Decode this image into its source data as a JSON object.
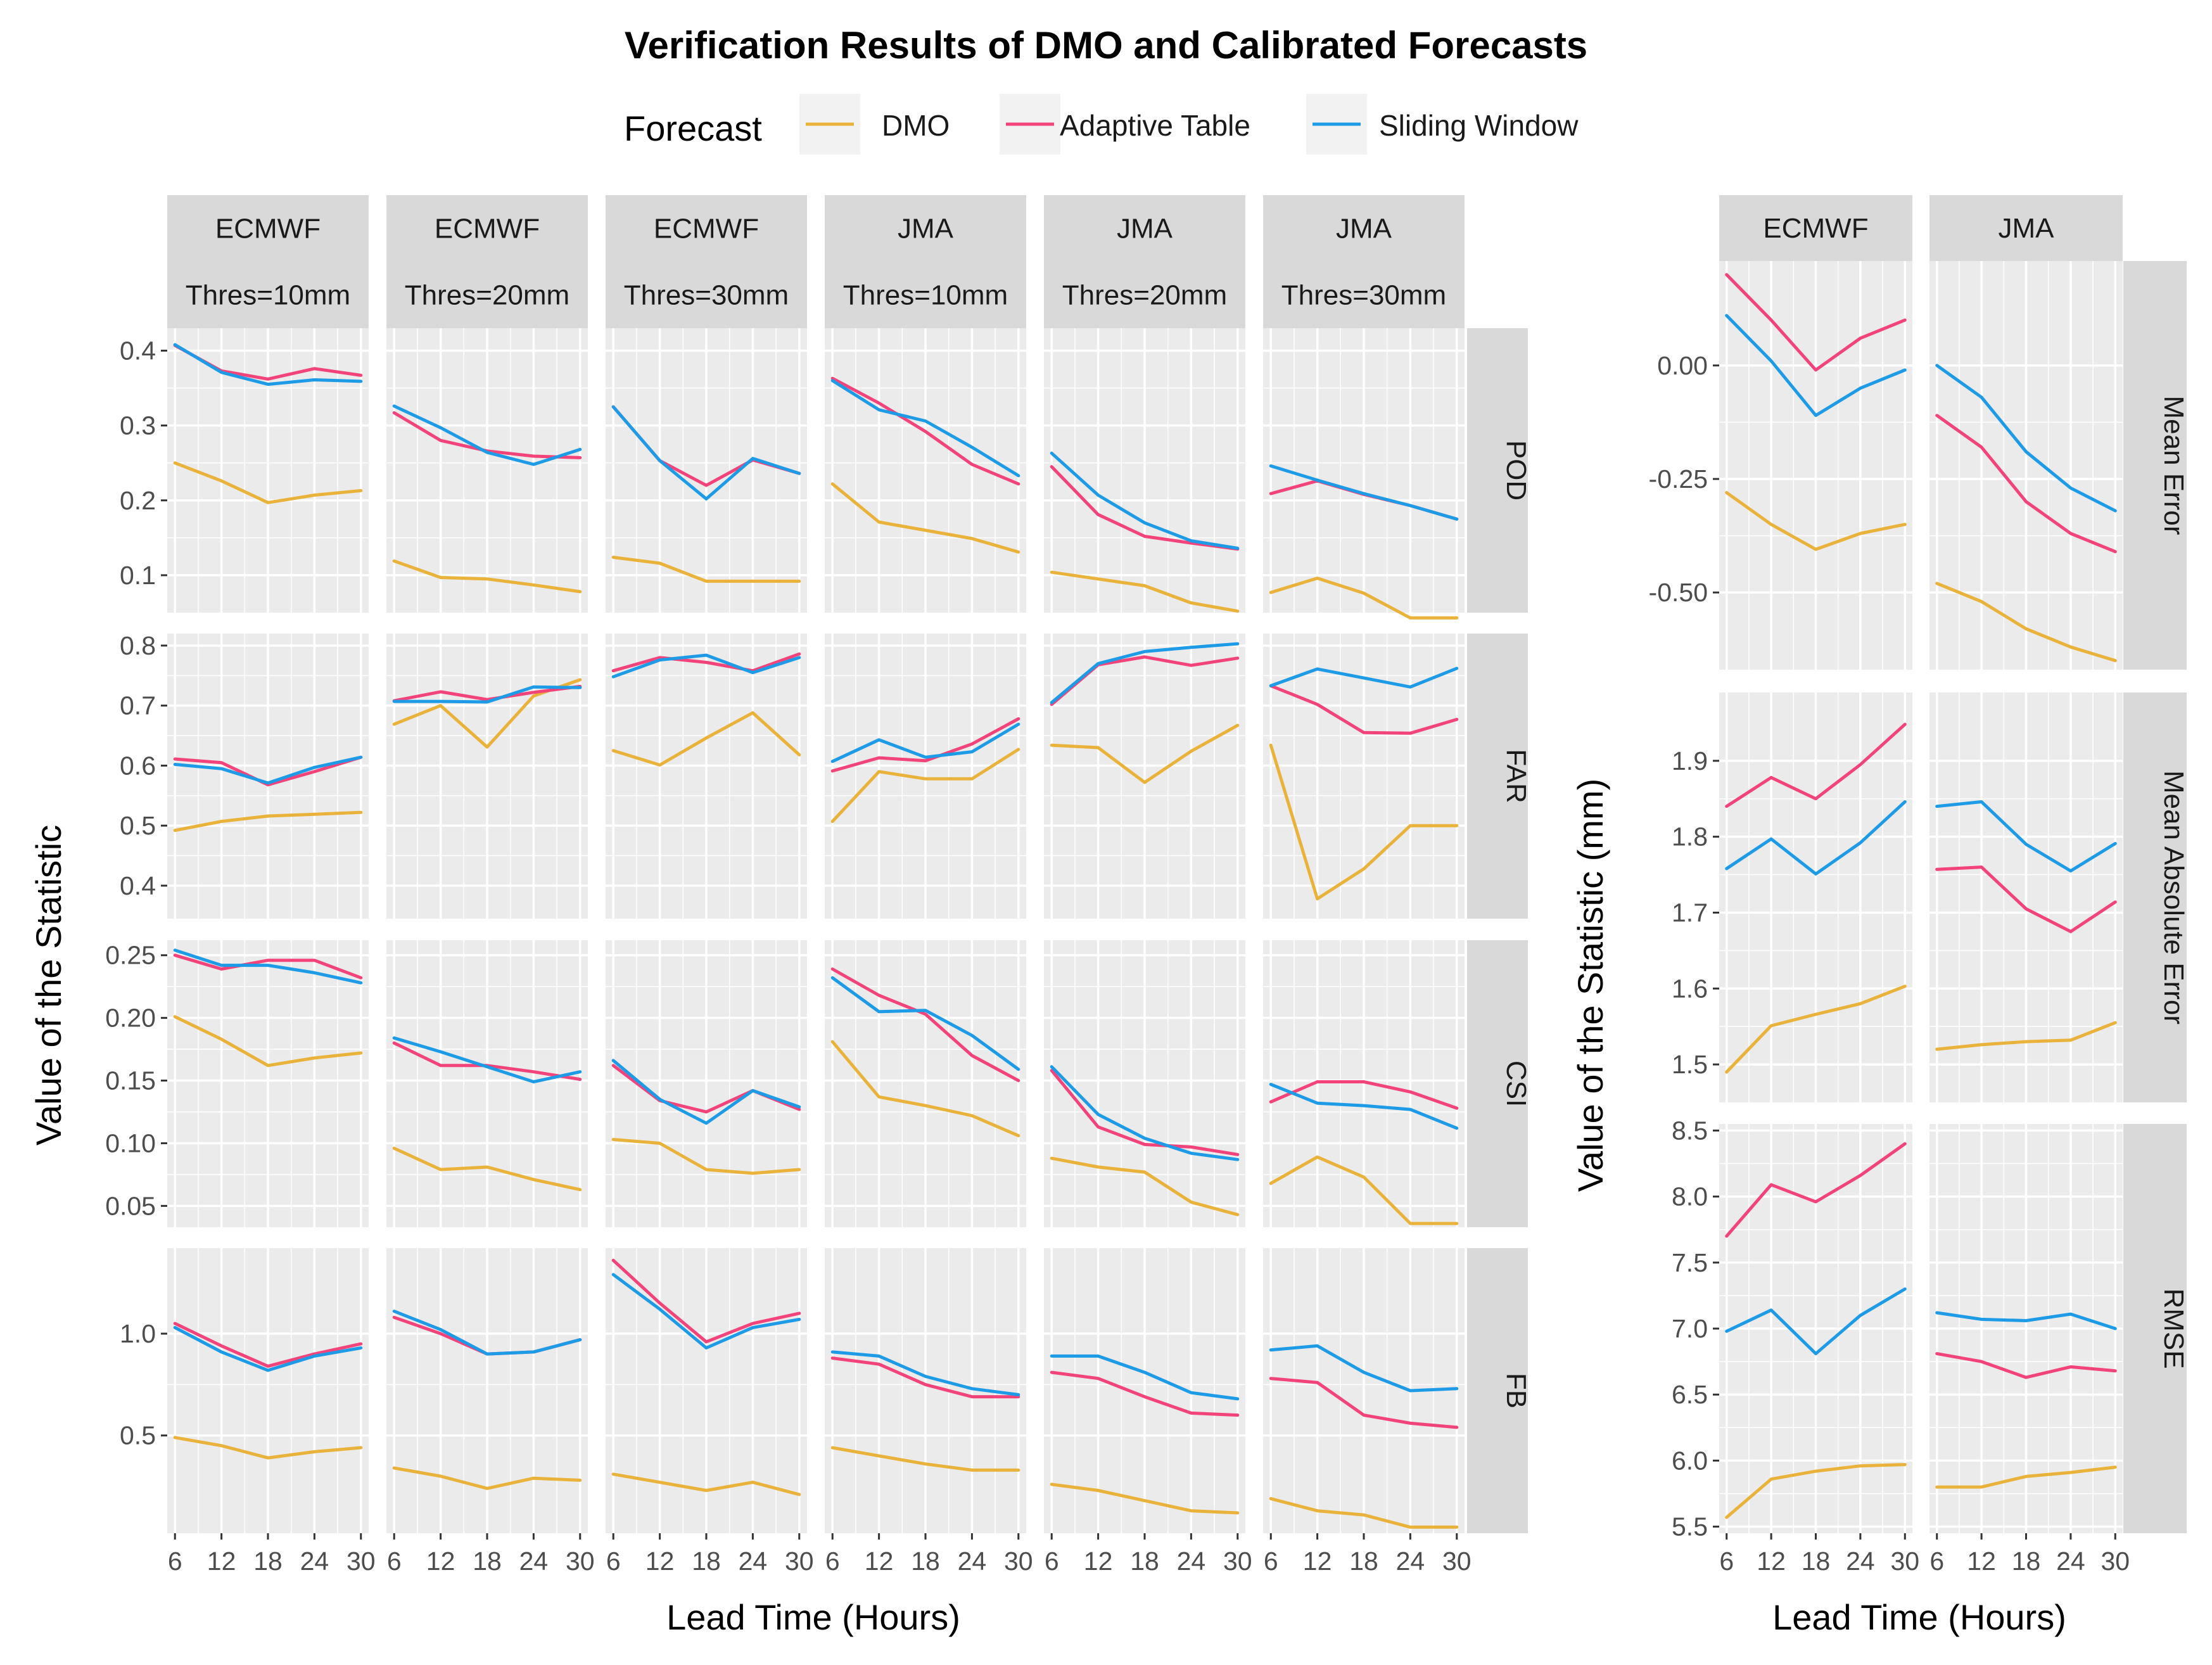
{
  "chart_data": {
    "type": "line",
    "title": "Verification Results of DMO and Calibrated Forecasts",
    "legend": {
      "title": "Forecast",
      "placement": "top",
      "entries": [
        "DMO",
        "Adaptive Table",
        "Sliding Window"
      ]
    },
    "colors": {
      "DMO": "#E9B23A",
      "Adaptive Table": "#F2437A",
      "Sliding Window": "#1E9BE6",
      "panel_bg": "#EBEBEB",
      "strip_bg": "#D9D9D9",
      "grid": "#FFFFFF"
    },
    "x": [
      6,
      12,
      18,
      24,
      30
    ],
    "left": {
      "xlabel": "Lead Time (Hours)",
      "ylabel": "Value of the Statistic",
      "columns": [
        {
          "model": "ECMWF",
          "threshold": "Thres=10mm"
        },
        {
          "model": "ECMWF",
          "threshold": "Thres=20mm"
        },
        {
          "model": "ECMWF",
          "threshold": "Thres=30mm"
        },
        {
          "model": "JMA",
          "threshold": "Thres=10mm"
        },
        {
          "model": "JMA",
          "threshold": "Thres=20mm"
        },
        {
          "model": "JMA",
          "threshold": "Thres=30mm"
        }
      ],
      "rows": [
        {
          "stat": "POD",
          "ylim": [
            0.05,
            0.43
          ],
          "yticks": [
            0.1,
            0.2,
            0.3,
            0.4
          ],
          "yticklabels": [
            "0.1",
            "0.2",
            "0.3",
            "0.4"
          ],
          "panels": [
            {
              "DMO": [
                0.25,
                0.226,
                0.197,
                0.207,
                0.213
              ],
              "Adaptive Table": [
                0.407,
                0.373,
                0.362,
                0.376,
                0.367
              ],
              "Sliding Window": [
                0.408,
                0.371,
                0.355,
                0.361,
                0.359
              ]
            },
            {
              "DMO": [
                0.119,
                0.097,
                0.095,
                0.087,
                0.078
              ],
              "Adaptive Table": [
                0.317,
                0.28,
                0.266,
                0.259,
                0.257
              ],
              "Sliding Window": [
                0.326,
                0.297,
                0.264,
                0.248,
                0.268
              ]
            },
            {
              "DMO": [
                0.124,
                0.116,
                0.092,
                0.092,
                0.092
              ],
              "Adaptive Table": [
                0.325,
                0.253,
                0.22,
                0.254,
                0.236
              ],
              "Sliding Window": [
                0.325,
                0.253,
                0.202,
                0.256,
                0.236
              ]
            },
            {
              "DMO": [
                0.222,
                0.171,
                0.16,
                0.149,
                0.131
              ],
              "Adaptive Table": [
                0.363,
                0.33,
                0.292,
                0.248,
                0.222
              ],
              "Sliding Window": [
                0.36,
                0.321,
                0.306,
                0.271,
                0.233
              ]
            },
            {
              "DMO": [
                0.104,
                0.095,
                0.086,
                0.063,
                0.052
              ],
              "Adaptive Table": [
                0.245,
                0.181,
                0.152,
                0.143,
                0.135
              ],
              "Sliding Window": [
                0.263,
                0.207,
                0.17,
                0.146,
                0.136
              ]
            },
            {
              "DMO": [
                0.077,
                0.096,
                0.076,
                0.043,
                0.043
              ],
              "Adaptive Table": [
                0.209,
                0.226,
                0.208,
                0.193,
                0.175
              ],
              "Sliding Window": [
                0.246,
                0.227,
                0.209,
                0.193,
                0.175
              ]
            }
          ]
        },
        {
          "stat": "FAR",
          "ylim": [
            0.345,
            0.82
          ],
          "yticks": [
            0.4,
            0.5,
            0.6,
            0.7,
            0.8
          ],
          "yticklabels": [
            "0.4",
            "0.5",
            "0.6",
            "0.7",
            "0.8"
          ],
          "panels": [
            {
              "DMO": [
                0.492,
                0.507,
                0.516,
                0.519,
                0.522
              ],
              "Adaptive Table": [
                0.611,
                0.605,
                0.568,
                0.59,
                0.614
              ],
              "Sliding Window": [
                0.602,
                0.595,
                0.571,
                0.597,
                0.614
              ]
            },
            {
              "DMO": [
                0.669,
                0.7,
                0.631,
                0.716,
                0.743
              ],
              "Adaptive Table": [
                0.708,
                0.723,
                0.71,
                0.722,
                0.732
              ],
              "Sliding Window": [
                0.707,
                0.707,
                0.706,
                0.731,
                0.73
              ]
            },
            {
              "DMO": [
                0.625,
                0.601,
                0.646,
                0.688,
                0.618
              ],
              "Adaptive Table": [
                0.758,
                0.78,
                0.772,
                0.758,
                0.786
              ],
              "Sliding Window": [
                0.748,
                0.776,
                0.784,
                0.755,
                0.78
              ]
            },
            {
              "DMO": [
                0.507,
                0.59,
                0.578,
                0.578,
                0.627
              ],
              "Adaptive Table": [
                0.591,
                0.613,
                0.608,
                0.636,
                0.678
              ],
              "Sliding Window": [
                0.607,
                0.643,
                0.614,
                0.623,
                0.669
              ]
            },
            {
              "DMO": [
                0.634,
                0.63,
                0.572,
                0.624,
                0.667
              ],
              "Adaptive Table": [
                0.702,
                0.768,
                0.781,
                0.767,
                0.779
              ],
              "Sliding Window": [
                0.705,
                0.77,
                0.79,
                0.797,
                0.803
              ]
            },
            {
              "DMO": [
                0.634,
                0.378,
                0.428,
                0.5,
                0.5
              ],
              "Adaptive Table": [
                0.733,
                0.702,
                0.655,
                0.654,
                0.677
              ],
              "Sliding Window": [
                0.733,
                0.761,
                0.746,
                0.731,
                0.762
              ]
            }
          ]
        },
        {
          "stat": "CSI",
          "ylim": [
            0.033,
            0.262
          ],
          "yticks": [
            0.05,
            0.1,
            0.15,
            0.2,
            0.25
          ],
          "yticklabels": [
            "0.05",
            "0.10",
            "0.15",
            "0.20",
            "0.25"
          ],
          "panels": [
            {
              "DMO": [
                0.201,
                0.183,
                0.162,
                0.168,
                0.172
              ],
              "Adaptive Table": [
                0.25,
                0.239,
                0.246,
                0.246,
                0.232
              ],
              "Sliding Window": [
                0.254,
                0.242,
                0.242,
                0.236,
                0.228
              ]
            },
            {
              "DMO": [
                0.096,
                0.079,
                0.081,
                0.071,
                0.063
              ],
              "Adaptive Table": [
                0.18,
                0.162,
                0.162,
                0.157,
                0.151
              ],
              "Sliding Window": [
                0.184,
                0.173,
                0.161,
                0.149,
                0.157
              ]
            },
            {
              "DMO": [
                0.103,
                0.1,
                0.079,
                0.076,
                0.079
              ],
              "Adaptive Table": [
                0.162,
                0.134,
                0.125,
                0.142,
                0.127
              ],
              "Sliding Window": [
                0.166,
                0.135,
                0.116,
                0.142,
                0.129
              ]
            },
            {
              "DMO": [
                0.181,
                0.137,
                0.13,
                0.122,
                0.106
              ],
              "Adaptive Table": [
                0.239,
                0.218,
                0.203,
                0.17,
                0.15
              ],
              "Sliding Window": [
                0.232,
                0.205,
                0.206,
                0.186,
                0.159
              ]
            },
            {
              "DMO": [
                0.088,
                0.081,
                0.077,
                0.053,
                0.043
              ],
              "Adaptive Table": [
                0.158,
                0.113,
                0.099,
                0.097,
                0.091
              ],
              "Sliding Window": [
                0.161,
                0.123,
                0.104,
                0.092,
                0.087
              ]
            },
            {
              "DMO": [
                0.068,
                0.089,
                0.073,
                0.036,
                0.036
              ],
              "Adaptive Table": [
                0.133,
                0.149,
                0.149,
                0.141,
                0.128
              ],
              "Sliding Window": [
                0.147,
                0.132,
                0.13,
                0.127,
                0.112
              ]
            }
          ]
        },
        {
          "stat": "FB",
          "ylim": [
            0.02,
            1.42
          ],
          "yticks": [
            0.5,
            1.0
          ],
          "yticklabels": [
            "0.5",
            "1.0"
          ],
          "panels": [
            {
              "DMO": [
                0.49,
                0.45,
                0.39,
                0.42,
                0.44
              ],
              "Adaptive Table": [
                1.05,
                0.94,
                0.84,
                0.9,
                0.95
              ],
              "Sliding Window": [
                1.03,
                0.91,
                0.82,
                0.89,
                0.93
              ]
            },
            {
              "DMO": [
                0.34,
                0.3,
                0.24,
                0.29,
                0.28
              ],
              "Adaptive Table": [
                1.08,
                1.0,
                0.9,
                0.91,
                0.97
              ],
              "Sliding Window": [
                1.11,
                1.02,
                0.9,
                0.91,
                0.97
              ]
            },
            {
              "DMO": [
                0.31,
                0.27,
                0.23,
                0.27,
                0.21
              ],
              "Adaptive Table": [
                1.36,
                1.15,
                0.96,
                1.05,
                1.1
              ],
              "Sliding Window": [
                1.29,
                1.12,
                0.93,
                1.03,
                1.07
              ]
            },
            {
              "DMO": [
                0.44,
                0.4,
                0.36,
                0.33,
                0.33
              ],
              "Adaptive Table": [
                0.88,
                0.85,
                0.75,
                0.69,
                0.69
              ],
              "Sliding Window": [
                0.91,
                0.89,
                0.79,
                0.73,
                0.7
              ]
            },
            {
              "DMO": [
                0.26,
                0.23,
                0.18,
                0.13,
                0.12
              ],
              "Adaptive Table": [
                0.81,
                0.78,
                0.69,
                0.61,
                0.6
              ],
              "Sliding Window": [
                0.89,
                0.89,
                0.81,
                0.71,
                0.68
              ]
            },
            {
              "DMO": [
                0.19,
                0.13,
                0.11,
                0.05,
                0.05
              ],
              "Adaptive Table": [
                0.78,
                0.76,
                0.6,
                0.56,
                0.54
              ],
              "Sliding Window": [
                0.92,
                0.94,
                0.81,
                0.72,
                0.73
              ]
            }
          ]
        }
      ]
    },
    "right": {
      "xlabel": "Lead Time (Hours)",
      "ylabel": "Value of the Statistic (mm)",
      "columns": [
        {
          "model": "ECMWF"
        },
        {
          "model": "JMA"
        }
      ],
      "rows": [
        {
          "stat": "Mean Error",
          "ylim": [
            -0.67,
            0.23
          ],
          "yticks": [
            -0.5,
            -0.25,
            0.0
          ],
          "yticklabels": [
            "-0.50",
            "-0.25",
            "0.00"
          ],
          "panels": [
            {
              "DMO": [
                -0.28,
                -0.35,
                -0.405,
                -0.37,
                -0.35
              ],
              "Adaptive Table": [
                0.2,
                0.1,
                -0.01,
                0.06,
                0.1
              ],
              "Sliding Window": [
                0.11,
                0.01,
                -0.11,
                -0.05,
                -0.01
              ]
            },
            {
              "DMO": [
                -0.48,
                -0.52,
                -0.58,
                -0.62,
                -0.65
              ],
              "Adaptive Table": [
                -0.11,
                -0.18,
                -0.3,
                -0.37,
                -0.41
              ],
              "Sliding Window": [
                0.0,
                -0.07,
                -0.19,
                -0.27,
                -0.32
              ]
            }
          ]
        },
        {
          "stat": "Mean Absolute Error",
          "ylim": [
            1.45,
            1.99
          ],
          "yticks": [
            1.5,
            1.6,
            1.7,
            1.8,
            1.9
          ],
          "yticklabels": [
            "1.5",
            "1.6",
            "1.7",
            "1.8",
            "1.9"
          ],
          "panels": [
            {
              "DMO": [
                1.49,
                1.551,
                1.566,
                1.58,
                1.603
              ],
              "Adaptive Table": [
                1.84,
                1.878,
                1.85,
                1.895,
                1.948
              ],
              "Sliding Window": [
                1.758,
                1.797,
                1.751,
                1.792,
                1.846
              ]
            },
            {
              "DMO": [
                1.52,
                1.526,
                1.53,
                1.532,
                1.555
              ],
              "Adaptive Table": [
                1.757,
                1.76,
                1.705,
                1.675,
                1.714
              ],
              "Sliding Window": [
                1.84,
                1.846,
                1.79,
                1.755,
                1.791
              ]
            }
          ]
        },
        {
          "stat": "RMSE",
          "ylim": [
            5.45,
            8.55
          ],
          "yticks": [
            5.5,
            6.0,
            6.5,
            7.0,
            7.5,
            8.0,
            8.5
          ],
          "yticklabels": [
            "5.5",
            "6.0",
            "6.5",
            "7.0",
            "7.5",
            "8.0",
            "8.5"
          ],
          "panels": [
            {
              "DMO": [
                5.57,
                5.86,
                5.92,
                5.96,
                5.97
              ],
              "Adaptive Table": [
                7.7,
                8.09,
                7.96,
                8.16,
                8.4
              ],
              "Sliding Window": [
                6.98,
                7.14,
                6.81,
                7.1,
                7.3
              ]
            },
            {
              "DMO": [
                5.8,
                5.8,
                5.88,
                5.91,
                5.95
              ],
              "Adaptive Table": [
                6.81,
                6.75,
                6.63,
                6.71,
                6.68
              ],
              "Sliding Window": [
                7.12,
                7.07,
                7.06,
                7.11,
                7.0
              ]
            }
          ]
        }
      ]
    }
  }
}
